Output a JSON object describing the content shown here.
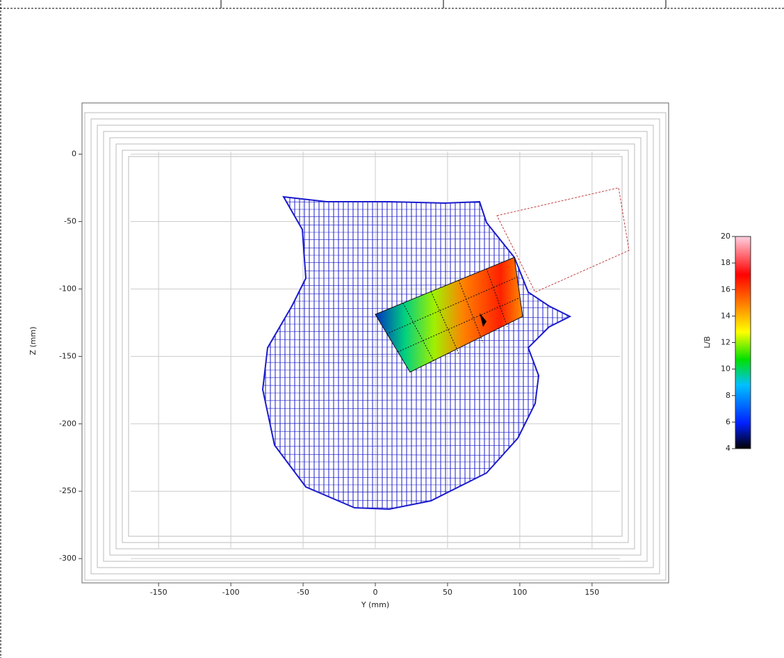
{
  "chart_data": {
    "type": "surface",
    "xlabel": "Y (mm)",
    "ylabel": "Z (mm)",
    "xlim": [
      -203,
      203
    ],
    "ylim": [
      -318,
      38
    ],
    "xticks": [
      -150,
      -100,
      -50,
      0,
      50,
      100,
      150
    ],
    "yticks": [
      0,
      -50,
      -100,
      -150,
      -200,
      -250,
      -300
    ],
    "grid": true,
    "colorbar": {
      "label": "L/B",
      "lim": [
        4,
        20
      ],
      "ticks": [
        4,
        6,
        8,
        10,
        12,
        14,
        16,
        18,
        20
      ]
    }
  }
}
